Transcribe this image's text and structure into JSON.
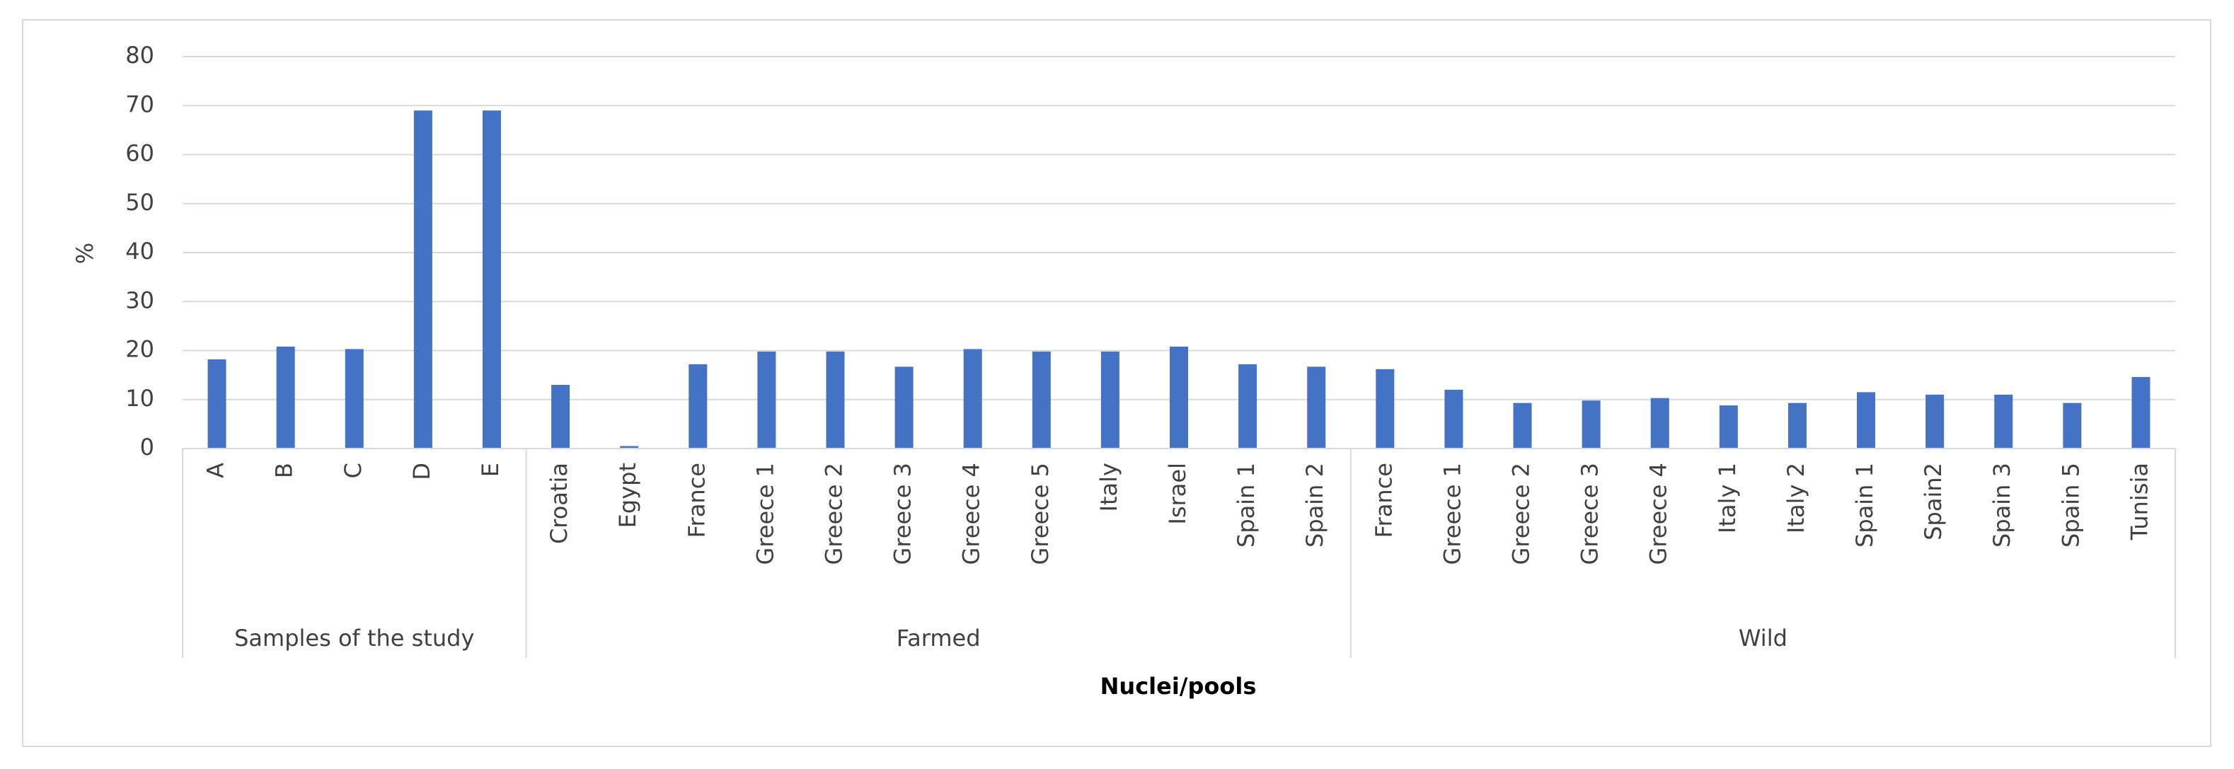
{
  "chart_data": {
    "type": "bar",
    "y_label": "%",
    "x_label": "Nuclei/pools",
    "color": "#4472c4",
    "grid": true,
    "ylim": [
      0,
      80
    ],
    "yticks": [
      0,
      10,
      20,
      30,
      40,
      50,
      60,
      70,
      80
    ],
    "groups": [
      {
        "label": "Samples of the study",
        "categories": [
          "A",
          "B",
          "C",
          "D",
          "E"
        ]
      },
      {
        "label": "Farmed",
        "categories": [
          "Croatia",
          "Egypt",
          "France",
          "Greece 1",
          "Greece 2",
          "Greece 3",
          "Greece 4",
          "Greece 5",
          "Italy",
          "Israel",
          "Spain 1",
          "Spain 2"
        ]
      },
      {
        "label": "Wild",
        "categories": [
          "France",
          "Greece 1",
          "Greece 2",
          "Greece 3",
          "Greece 4",
          "Italy 1",
          "Italy 2",
          "Spain 1",
          "Spain2",
          "Spain 3",
          "Spain 5",
          "Tunisia"
        ]
      }
    ],
    "values": [
      18.2,
      20.8,
      20.3,
      69,
      69,
      13,
      0.5,
      17.2,
      19.8,
      19.8,
      16.7,
      20.3,
      19.8,
      19.8,
      20.8,
      17.2,
      16.7,
      16.2,
      12,
      9.3,
      9.8,
      10.3,
      8.8,
      9.3,
      11.5,
      11,
      11,
      9.3,
      14.6
    ]
  }
}
